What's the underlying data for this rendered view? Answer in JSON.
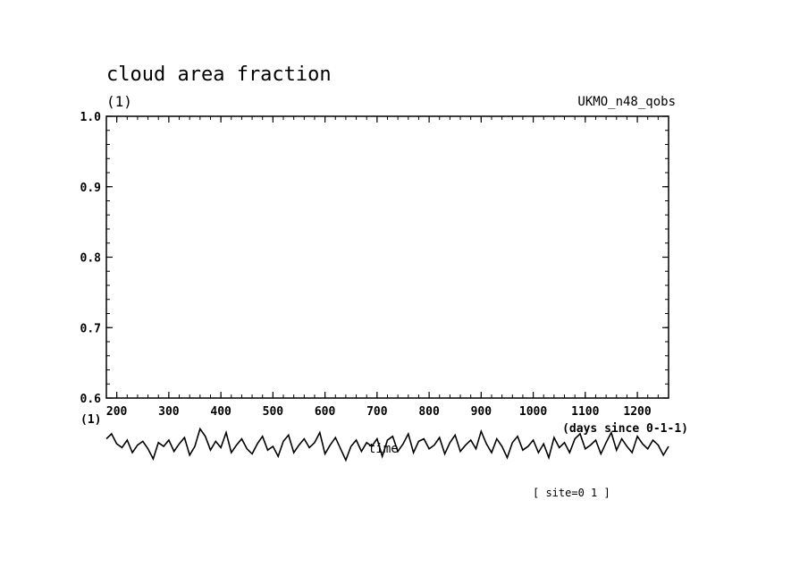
{
  "chart_data": {
    "type": "line",
    "title": "cloud area fraction",
    "yunit": "(1)",
    "dataset": "UKMO_n48_qobs",
    "xlabel": "(days since 0-1-1)",
    "xlim": [
      180,
      1260
    ],
    "ylim": [
      0.6,
      1.0
    ],
    "xticks": [
      200,
      300,
      400,
      500,
      600,
      700,
      800,
      900,
      1000,
      1100,
      1200
    ],
    "xtick_labels": [
      "200",
      "300",
      "400",
      "500",
      "600",
      "700",
      "800",
      "900",
      "1000",
      "1100",
      "1200"
    ],
    "yticks": [
      0.6,
      0.7,
      0.8,
      0.9,
      1.0
    ],
    "ytick_labels": [
      "0.6",
      "0.7",
      "0.8",
      "0.9",
      "1.0"
    ],
    "grid": false,
    "lower_panel": {
      "yunit": "(1)",
      "label": "time",
      "annotation": "[ site=0 1 ]",
      "series": [
        {
          "x": [
            180,
            190,
            200,
            210,
            220,
            230,
            240,
            250,
            260,
            270,
            280,
            290,
            300,
            310,
            320,
            330,
            340,
            350,
            360,
            370,
            380,
            390,
            400,
            410,
            420,
            430,
            440,
            450,
            460,
            470,
            480,
            490,
            500,
            510,
            520,
            530,
            540,
            550,
            560,
            570,
            580,
            590,
            600,
            610,
            620,
            630,
            640,
            650,
            660,
            670,
            680,
            690,
            700,
            710,
            720,
            730,
            740,
            750,
            760,
            770,
            780,
            790,
            800,
            810,
            820,
            830,
            840,
            850,
            860,
            870,
            880,
            890,
            900,
            910,
            920,
            930,
            940,
            950,
            960,
            970,
            980,
            990,
            1000,
            1010,
            1020,
            1030,
            1040,
            1050,
            1060,
            1070,
            1080,
            1090,
            1100,
            1110,
            1120,
            1130,
            1140,
            1150,
            1160,
            1170,
            1180,
            1190,
            1200,
            1210,
            1220,
            1230,
            1240,
            1250,
            1260
          ],
          "y": [
            0.82,
            0.9,
            0.74,
            0.68,
            0.8,
            0.6,
            0.72,
            0.78,
            0.66,
            0.5,
            0.76,
            0.7,
            0.8,
            0.62,
            0.74,
            0.84,
            0.56,
            0.7,
            0.98,
            0.86,
            0.64,
            0.78,
            0.68,
            0.92,
            0.6,
            0.72,
            0.82,
            0.66,
            0.58,
            0.74,
            0.86,
            0.64,
            0.7,
            0.54,
            0.78,
            0.88,
            0.6,
            0.72,
            0.82,
            0.68,
            0.76,
            0.92,
            0.58,
            0.72,
            0.84,
            0.66,
            0.48,
            0.7,
            0.8,
            0.62,
            0.76,
            0.7,
            0.82,
            0.54,
            0.8,
            0.86,
            0.62,
            0.74,
            0.9,
            0.6,
            0.78,
            0.82,
            0.66,
            0.72,
            0.84,
            0.58,
            0.76,
            0.88,
            0.62,
            0.72,
            0.8,
            0.66,
            0.94,
            0.74,
            0.6,
            0.82,
            0.7,
            0.52,
            0.76,
            0.86,
            0.64,
            0.7,
            0.8,
            0.6,
            0.74,
            0.52,
            0.84,
            0.68,
            0.76,
            0.6,
            0.82,
            0.9,
            0.66,
            0.72,
            0.8,
            0.58,
            0.76,
            0.92,
            0.64,
            0.82,
            0.7,
            0.6,
            0.86,
            0.74,
            0.66,
            0.8,
            0.72,
            0.56,
            0.7
          ]
        }
      ]
    }
  }
}
